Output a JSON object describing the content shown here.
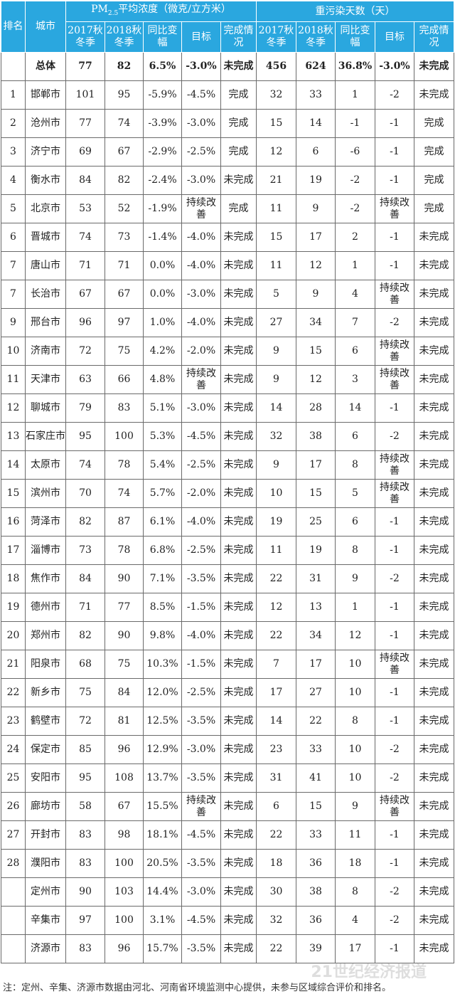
{
  "header": {
    "rank": "排名",
    "city": "城市",
    "pm_group": "PM",
    "pm_sub": "2.5",
    "pm_group_rest": "平均浓度（微克/立方米）",
    "days_group": "重污染天数（天）",
    "sub_cols": [
      "2017秋冬季",
      "2018秋冬季",
      "同比变幅",
      "目标",
      "完成情况"
    ]
  },
  "rows": [
    [
      "",
      "总体",
      "77",
      "82",
      "6.5%",
      "-3.0%",
      "未完成",
      "456",
      "624",
      "36.8%",
      "-3.0%",
      "未完成"
    ],
    [
      "1",
      "邯郸市",
      "101",
      "95",
      "-5.9%",
      "-4.5%",
      "完成",
      "32",
      "33",
      "1",
      "-2",
      "未完成"
    ],
    [
      "2",
      "沧州市",
      "77",
      "74",
      "-3.9%",
      "-3.0%",
      "完成",
      "15",
      "14",
      "-1",
      "-1",
      "完成"
    ],
    [
      "3",
      "济宁市",
      "69",
      "67",
      "-2.9%",
      "-2.5%",
      "完成",
      "12",
      "6",
      "-6",
      "-1",
      "完成"
    ],
    [
      "4",
      "衡水市",
      "84",
      "82",
      "-2.4%",
      "-3.0%",
      "未完成",
      "21",
      "19",
      "-2",
      "-1",
      "完成"
    ],
    [
      "5",
      "北京市",
      "53",
      "52",
      "-1.9%",
      "持续改善",
      "完成",
      "11",
      "9",
      "-2",
      "持续改善",
      "完成"
    ],
    [
      "6",
      "晋城市",
      "74",
      "73",
      "-1.4%",
      "-4.0%",
      "未完成",
      "15",
      "17",
      "2",
      "-1",
      "未完成"
    ],
    [
      "7",
      "唐山市",
      "71",
      "71",
      "0.0%",
      "-4.0%",
      "未完成",
      "11",
      "12",
      "1",
      "-1",
      "未完成"
    ],
    [
      "7",
      "长治市",
      "67",
      "67",
      "0.0%",
      "-3.0%",
      "未完成",
      "5",
      "9",
      "4",
      "持续改善",
      "未完成"
    ],
    [
      "9",
      "邢台市",
      "96",
      "97",
      "1.0%",
      "-4.0%",
      "未完成",
      "27",
      "34",
      "7",
      "-2",
      "未完成"
    ],
    [
      "10",
      "济南市",
      "72",
      "75",
      "4.2%",
      "-2.0%",
      "未完成",
      "9",
      "15",
      "6",
      "持续改善",
      "未完成"
    ],
    [
      "11",
      "天津市",
      "63",
      "66",
      "4.8%",
      "持续改善",
      "未完成",
      "9",
      "12",
      "3",
      "持续改善",
      "未完成"
    ],
    [
      "12",
      "聊城市",
      "79",
      "83",
      "5.1%",
      "-3.0%",
      "未完成",
      "14",
      "28",
      "14",
      "-1",
      "未完成"
    ],
    [
      "13",
      "石家庄市",
      "95",
      "100",
      "5.3%",
      "-4.5%",
      "未完成",
      "32",
      "38",
      "6",
      "-2",
      "未完成"
    ],
    [
      "14",
      "太原市",
      "74",
      "78",
      "5.4%",
      "-2.5%",
      "未完成",
      "9",
      "17",
      "8",
      "持续改善",
      "未完成"
    ],
    [
      "15",
      "滨州市",
      "70",
      "74",
      "5.7%",
      "-2.0%",
      "未完成",
      "10",
      "15",
      "5",
      "持续改善",
      "未完成"
    ],
    [
      "16",
      "菏泽市",
      "82",
      "87",
      "6.1%",
      "-4.0%",
      "未完成",
      "19",
      "25",
      "6",
      "-1",
      "未完成"
    ],
    [
      "17",
      "淄博市",
      "73",
      "78",
      "6.8%",
      "-2.5%",
      "未完成",
      "11",
      "19",
      "8",
      "-1",
      "未完成"
    ],
    [
      "18",
      "焦作市",
      "84",
      "90",
      "7.1%",
      "-3.5%",
      "未完成",
      "22",
      "31",
      "9",
      "-2",
      "未完成"
    ],
    [
      "19",
      "德州市",
      "71",
      "77",
      "8.5%",
      "-1.5%",
      "未完成",
      "12",
      "13",
      "1",
      "-1",
      "未完成"
    ],
    [
      "20",
      "郑州市",
      "82",
      "90",
      "9.8%",
      "-4.0%",
      "未完成",
      "22",
      "34",
      "12",
      "-1",
      "未完成"
    ],
    [
      "21",
      "阳泉市",
      "68",
      "75",
      "10.3%",
      "-1.5%",
      "未完成",
      "7",
      "17",
      "10",
      "持续改善",
      "未完成"
    ],
    [
      "22",
      "新乡市",
      "75",
      "84",
      "12.0%",
      "-2.5%",
      "未完成",
      "17",
      "27",
      "10",
      "-1",
      "未完成"
    ],
    [
      "23",
      "鹤壁市",
      "72",
      "81",
      "12.5%",
      "-3.5%",
      "未完成",
      "14",
      "22",
      "8",
      "-1",
      "未完成"
    ],
    [
      "24",
      "保定市",
      "85",
      "96",
      "12.9%",
      "-3.0%",
      "未完成",
      "23",
      "33",
      "10",
      "-2",
      "未完成"
    ],
    [
      "25",
      "安阳市",
      "95",
      "108",
      "13.7%",
      "-3.5%",
      "未完成",
      "31",
      "41",
      "10",
      "-2",
      "未完成"
    ],
    [
      "26",
      "廊坊市",
      "58",
      "67",
      "15.5%",
      "持续改善",
      "未完成",
      "6",
      "15",
      "9",
      "持续改善",
      "未完成"
    ],
    [
      "27",
      "开封市",
      "83",
      "98",
      "18.1%",
      "-4.5%",
      "未完成",
      "22",
      "33",
      "11",
      "-1",
      "未完成"
    ],
    [
      "28",
      "濮阳市",
      "83",
      "100",
      "20.5%",
      "-3.5%",
      "未完成",
      "18",
      "36",
      "18",
      "-1",
      "未完成"
    ],
    [
      "",
      "定州市",
      "90",
      "103",
      "14.4%",
      "-3.0%",
      "未完成",
      "30",
      "38",
      "8",
      "-2",
      "未完成"
    ],
    [
      "",
      "辛集市",
      "97",
      "100",
      "3.1%",
      "-4.5%",
      "未完成",
      "32",
      "36",
      "4",
      "-2",
      "未完成"
    ],
    [
      "",
      "济源市",
      "83",
      "96",
      "15.7%",
      "-3.5%",
      "未完成",
      "22",
      "39",
      "17",
      "-1",
      "未完成"
    ]
  ],
  "footnote": "注：定州、辛集、济源市数据由河北、河南省环境监测中心提供，未参与区域综合评价和排名。",
  "watermark": "21世纪经济报道",
  "colors": {
    "header_bg": "#2aa7df",
    "header_text": "#ffffff"
  }
}
